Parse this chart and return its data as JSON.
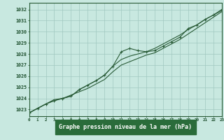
{
  "title": "Graphe pression niveau de la mer (hPa)",
  "hours": [
    0,
    1,
    2,
    3,
    4,
    5,
    6,
    7,
    8,
    9,
    10,
    11,
    12,
    13,
    14,
    15,
    16,
    17,
    18,
    19,
    20,
    21,
    22,
    23
  ],
  "ylim": [
    1022.4,
    1032.6
  ],
  "xlim": [
    0,
    23
  ],
  "yticks": [
    1023,
    1024,
    1025,
    1026,
    1027,
    1028,
    1029,
    1030,
    1031,
    1032
  ],
  "background_color": "#c8e8e0",
  "grid_color": "#a0c8c0",
  "line_color": "#2a5c38",
  "text_color": "#1a4c2a",
  "label_bg": "#2a6c3a",
  "series_marker": [
    1022.7,
    1023.1,
    1023.5,
    1023.8,
    1024.0,
    1024.2,
    1024.8,
    1025.2,
    1025.6,
    1026.1,
    1026.9,
    1028.2,
    1028.5,
    1028.3,
    1028.2,
    1028.3,
    1028.7,
    1029.1,
    1029.5,
    1030.3,
    1030.6,
    1031.1,
    1031.5,
    1032.0
  ],
  "series_smooth_high": [
    1022.7,
    1023.1,
    1023.5,
    1023.8,
    1024.0,
    1024.2,
    1024.8,
    1025.2,
    1025.6,
    1026.1,
    1026.9,
    1027.5,
    1027.8,
    1028.0,
    1028.2,
    1028.5,
    1028.9,
    1029.3,
    1029.7,
    1030.2,
    1030.6,
    1031.1,
    1031.5,
    1031.9
  ],
  "series_smooth_low": [
    1022.7,
    1023.1,
    1023.5,
    1023.9,
    1024.0,
    1024.3,
    1024.6,
    1024.9,
    1025.3,
    1025.7,
    1026.4,
    1027.0,
    1027.3,
    1027.6,
    1027.9,
    1028.1,
    1028.5,
    1028.9,
    1029.3,
    1029.8,
    1030.3,
    1030.8,
    1031.3,
    1031.8
  ]
}
